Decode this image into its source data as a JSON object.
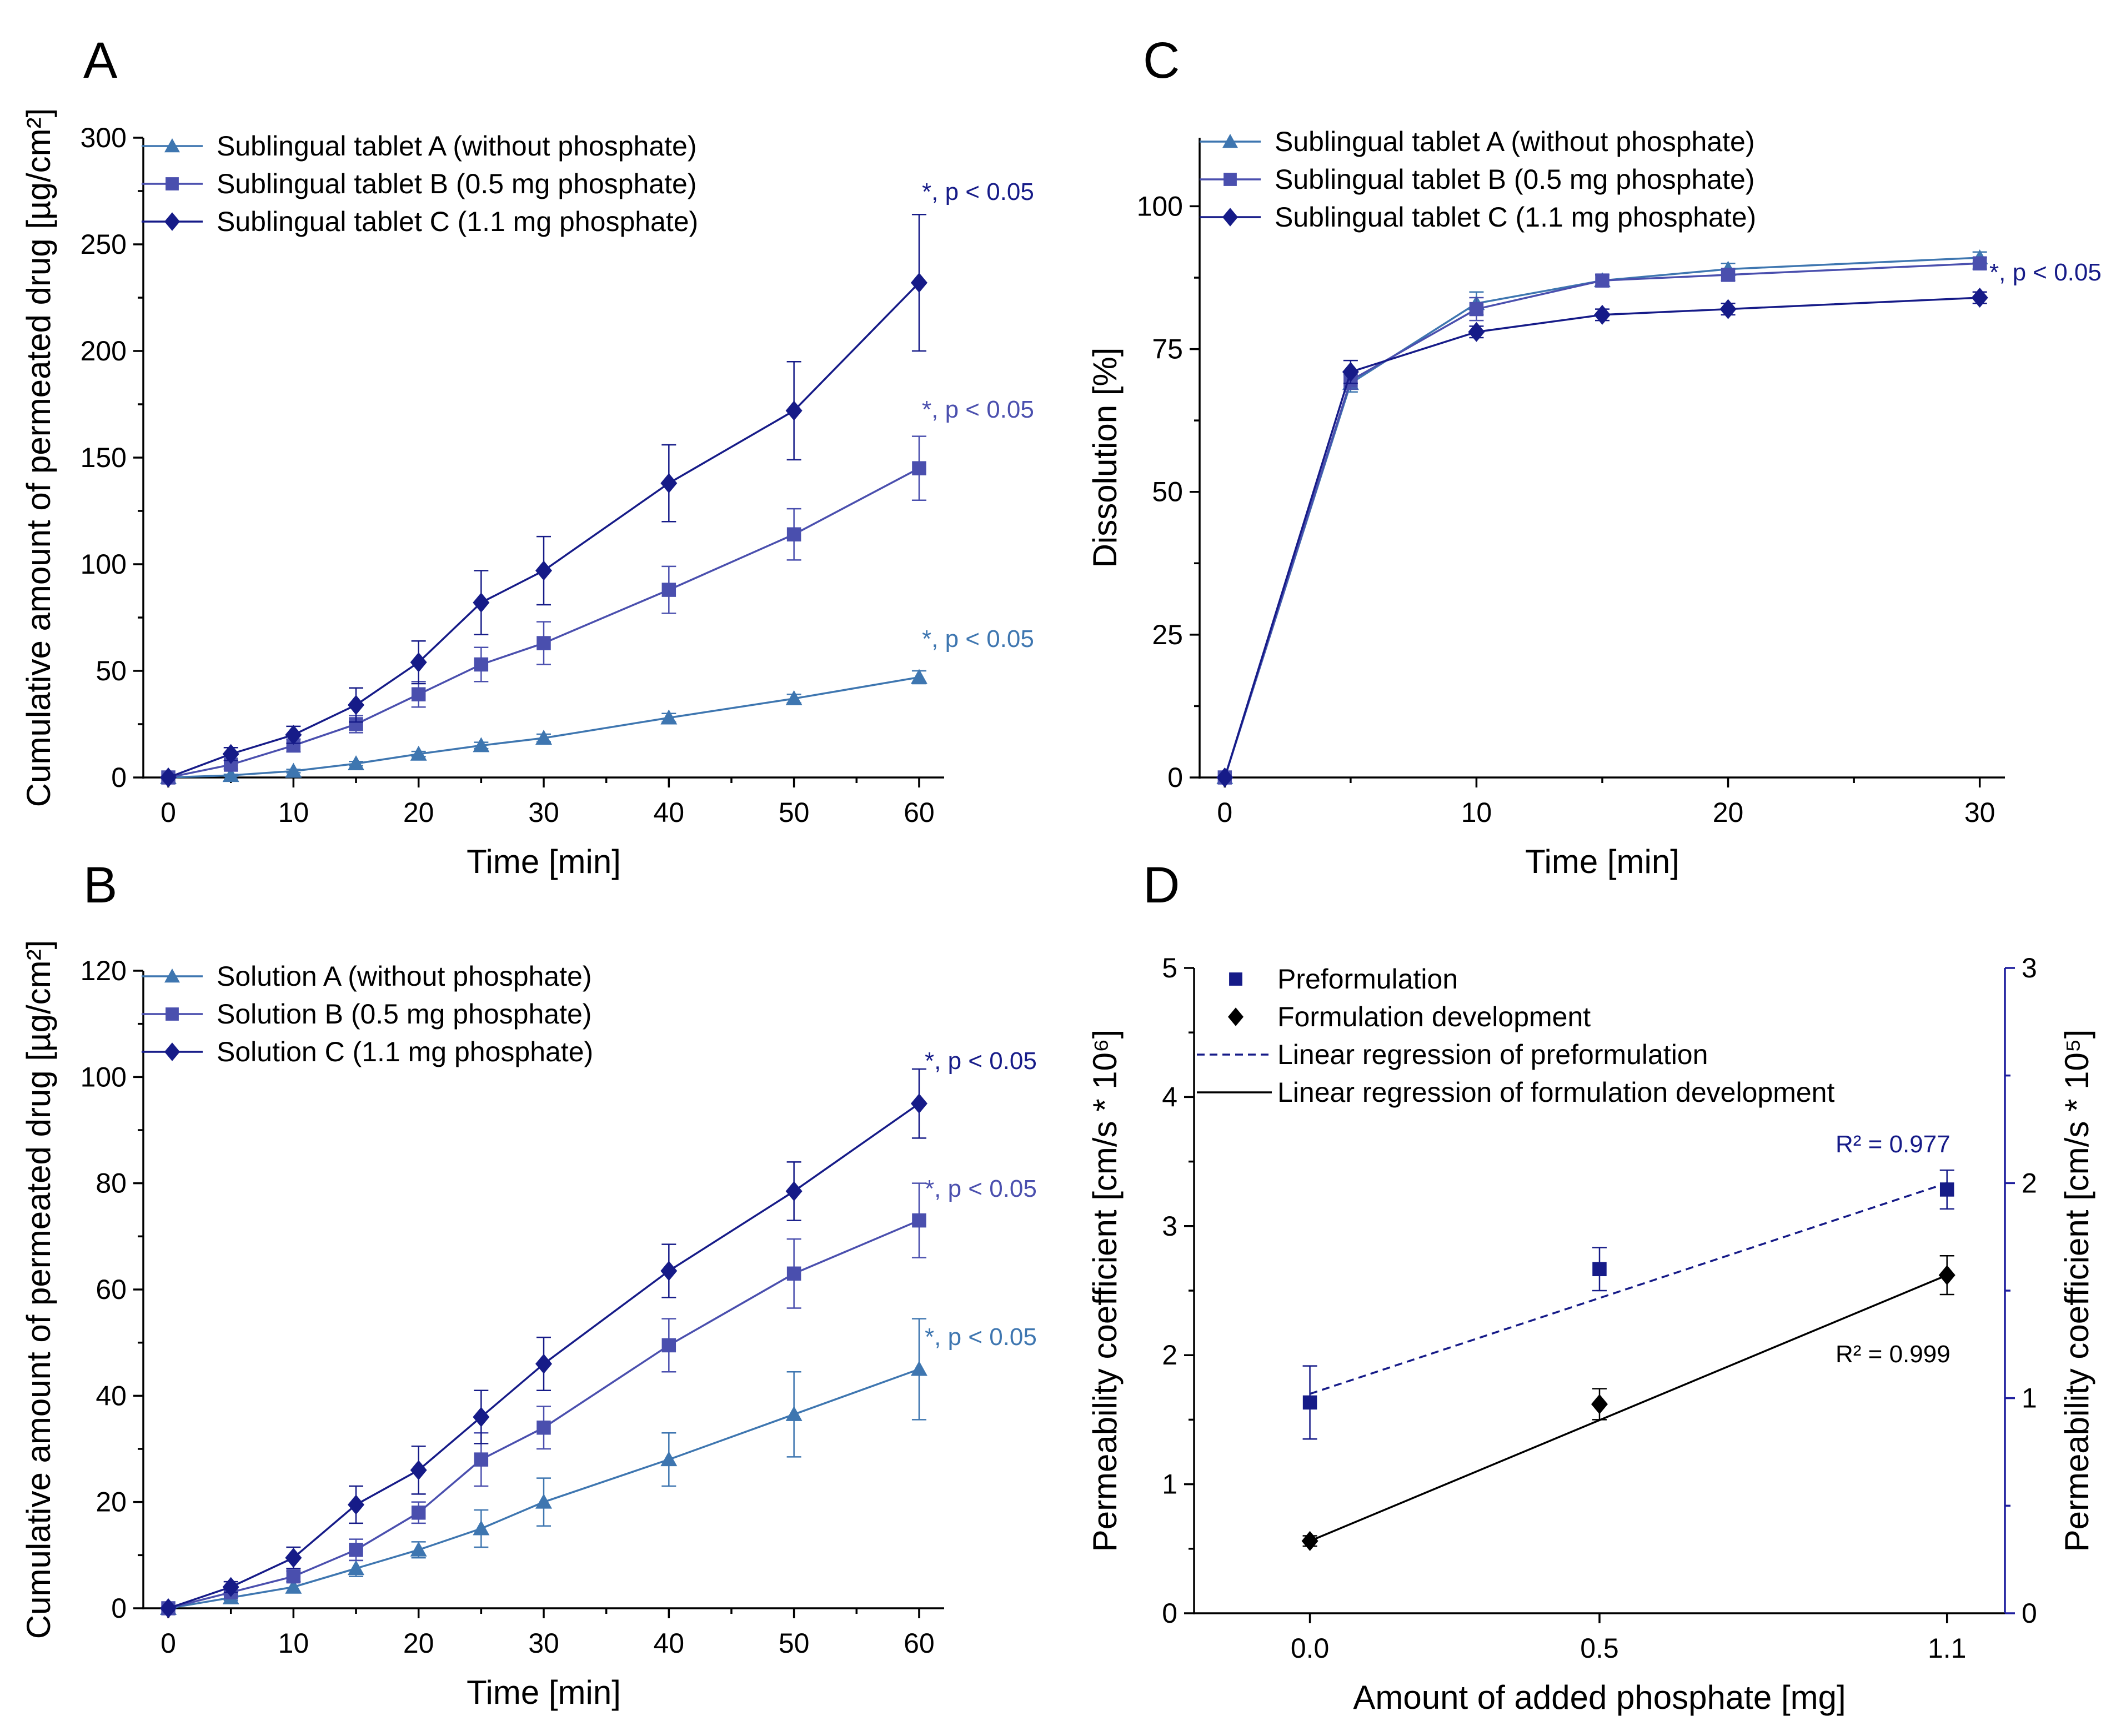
{
  "colors": {
    "tabletA": "#3E76B0",
    "tabletB": "#4A4FAE",
    "tabletC": "#161B88",
    "preform": "#161B88",
    "formdev": "#000000",
    "rightAxis": "#1E1E9E"
  },
  "chart_data": [
    {
      "id": "A",
      "type": "line",
      "panel_label": "A",
      "xlabel": "Time [min]",
      "ylabel": "Cumulative amount of permeated drug [µg/cm²]",
      "xlim": [
        -2,
        62
      ],
      "ylim": [
        0,
        300
      ],
      "xticks": [
        0,
        10,
        20,
        30,
        40,
        50,
        60
      ],
      "yticks": [
        0,
        50,
        100,
        150,
        200,
        250,
        300
      ],
      "x": [
        0,
        5,
        10,
        15,
        20,
        25,
        30,
        40,
        50,
        60
      ],
      "series": [
        {
          "name": "Sublingual tablet A (without phosphate)",
          "marker": "triangle",
          "color": "tabletA",
          "values": [
            0,
            1,
            3,
            6.5,
            11,
            15,
            18.5,
            28,
            37,
            47
          ],
          "errors": [
            0,
            0.5,
            0.8,
            1,
            1.2,
            1.5,
            1.8,
            2,
            2,
            3
          ],
          "annotation": "*, p < 0.05"
        },
        {
          "name": "Sublingual tablet B (0.5 mg phosphate)",
          "marker": "square",
          "color": "tabletB",
          "values": [
            0,
            6,
            15,
            25,
            39,
            53,
            63,
            88,
            114,
            145
          ],
          "errors": [
            0,
            2,
            3,
            4,
            6,
            8,
            10,
            11,
            12,
            15
          ],
          "annotation": "*, p < 0.05"
        },
        {
          "name": "Sublingual tablet C (1.1 mg phosphate)",
          "marker": "diamond",
          "color": "tabletC",
          "values": [
            0,
            11,
            20,
            34,
            54,
            82,
            97,
            138,
            172,
            232
          ],
          "errors": [
            0,
            3,
            4,
            8,
            10,
            15,
            16,
            18,
            23,
            32
          ],
          "annotation": "*, p < 0.05"
        }
      ]
    },
    {
      "id": "B",
      "type": "line",
      "panel_label": "B",
      "xlabel": "Time [min]",
      "ylabel": "Cumulative amount of permeated drug [µg/cm²]",
      "xlim": [
        -2,
        62
      ],
      "ylim": [
        0,
        120
      ],
      "xticks": [
        0,
        10,
        20,
        30,
        40,
        50,
        60
      ],
      "yticks": [
        0,
        20,
        40,
        60,
        80,
        100,
        120
      ],
      "x": [
        0,
        5,
        10,
        15,
        20,
        25,
        30,
        40,
        50,
        60
      ],
      "series": [
        {
          "name": "Solution A (without phosphate)",
          "marker": "triangle",
          "color": "tabletA",
          "values": [
            0,
            2,
            4,
            7.5,
            11,
            15,
            20,
            28,
            36.5,
            45
          ],
          "errors": [
            0,
            0.5,
            1,
            1.5,
            1.5,
            3.5,
            4.5,
            5,
            8,
            9.5
          ],
          "annotation": "*, p < 0.05"
        },
        {
          "name": "Solution B (0.5 mg phosphate)",
          "marker": "square",
          "color": "tabletB",
          "values": [
            0,
            3,
            6,
            11,
            18,
            28,
            34,
            49.5,
            63,
            73
          ],
          "errors": [
            0,
            0.5,
            1,
            2,
            2,
            5,
            4,
            5,
            6.5,
            7
          ],
          "annotation": "*, p < 0.05"
        },
        {
          "name": "Solution C (1.1 mg phosphate)",
          "marker": "diamond",
          "color": "tabletC",
          "values": [
            0,
            4,
            9.5,
            19.5,
            26,
            36,
            46,
            63.5,
            78.5,
            95
          ],
          "errors": [
            0,
            1,
            2,
            3.5,
            4.5,
            5,
            5,
            5,
            5.5,
            6.5
          ],
          "annotation": "*, p < 0.05"
        }
      ]
    },
    {
      "id": "C",
      "type": "line",
      "panel_label": "C",
      "xlabel": "Time [min]",
      "ylabel": "Dissolution [%]",
      "xlim": [
        -1,
        31
      ],
      "ylim": [
        0,
        112
      ],
      "xticks": [
        0,
        10,
        20,
        30
      ],
      "yticks": [
        0,
        25,
        50,
        75,
        100
      ],
      "x": [
        0,
        5,
        10,
        15,
        20,
        30
      ],
      "series": [
        {
          "name": "Sublingual tablet A (without phosphate)",
          "marker": "triangle",
          "color": "tabletA",
          "values": [
            0,
            69,
            83,
            87,
            89,
            91
          ],
          "errors": [
            0,
            1.5,
            2,
            1,
            1,
            1
          ]
        },
        {
          "name": "Sublingual tablet B (0.5 mg phosphate)",
          "marker": "square",
          "color": "tabletB",
          "values": [
            0,
            69.5,
            82,
            87,
            88,
            90
          ],
          "errors": [
            0,
            1.5,
            2,
            1,
            1,
            1
          ]
        },
        {
          "name": "Sublingual tablet C (1.1 mg phosphate)",
          "marker": "diamond",
          "color": "tabletC",
          "values": [
            0,
            71,
            78,
            81,
            82,
            84
          ],
          "errors": [
            0,
            2,
            1,
            1,
            1,
            1
          ],
          "annotation": "*, p < 0.05"
        }
      ]
    },
    {
      "id": "D",
      "type": "scatter",
      "panel_label": "D",
      "xlabel": "Amount of added phosphate [mg]",
      "ylabel_left": "Permeability coefficient [cm/s * 10⁶]",
      "ylabel_right": "Permeability coefficient [cm/s * 10⁵]",
      "xlim": [
        -0.2,
        1.2
      ],
      "ylim_left": [
        0,
        5
      ],
      "ylim_right": [
        0,
        3
      ],
      "xticks": [
        0,
        0.5,
        1.1
      ],
      "xtick_labels": [
        "0.0",
        "0.5",
        "1.1"
      ],
      "yticks_left": [
        0,
        1,
        2,
        3,
        4,
        5
      ],
      "yticks_right": [
        0,
        1,
        2,
        3
      ],
      "series": [
        {
          "name": "Preformulation",
          "marker": "square",
          "color": "preform",
          "axis": "right",
          "x": [
            0,
            0.5,
            1.1
          ],
          "values": [
            0.98,
            1.6,
            1.97
          ],
          "errors": [
            0.17,
            0.1,
            0.09
          ]
        },
        {
          "name": "Formulation development",
          "marker": "diamond",
          "color": "formdev",
          "axis": "left",
          "x": [
            0,
            0.5,
            1.1
          ],
          "values": [
            0.56,
            1.62,
            2.62
          ],
          "errors": [
            0.04,
            0.12,
            0.15
          ]
        }
      ],
      "regressions": [
        {
          "name": "Linear regression of preformulation",
          "style": "dashed",
          "color": "preform",
          "axis": "right",
          "x": [
            0,
            1.1
          ],
          "values": [
            1.02,
            2.0
          ],
          "r2": "R² = 0.977"
        },
        {
          "name": "Linear regression of formulation development",
          "style": "solid",
          "color": "formdev",
          "axis": "left",
          "x": [
            0,
            1.1
          ],
          "values": [
            0.56,
            2.62
          ],
          "r2": "R² = 0.999"
        }
      ]
    }
  ]
}
